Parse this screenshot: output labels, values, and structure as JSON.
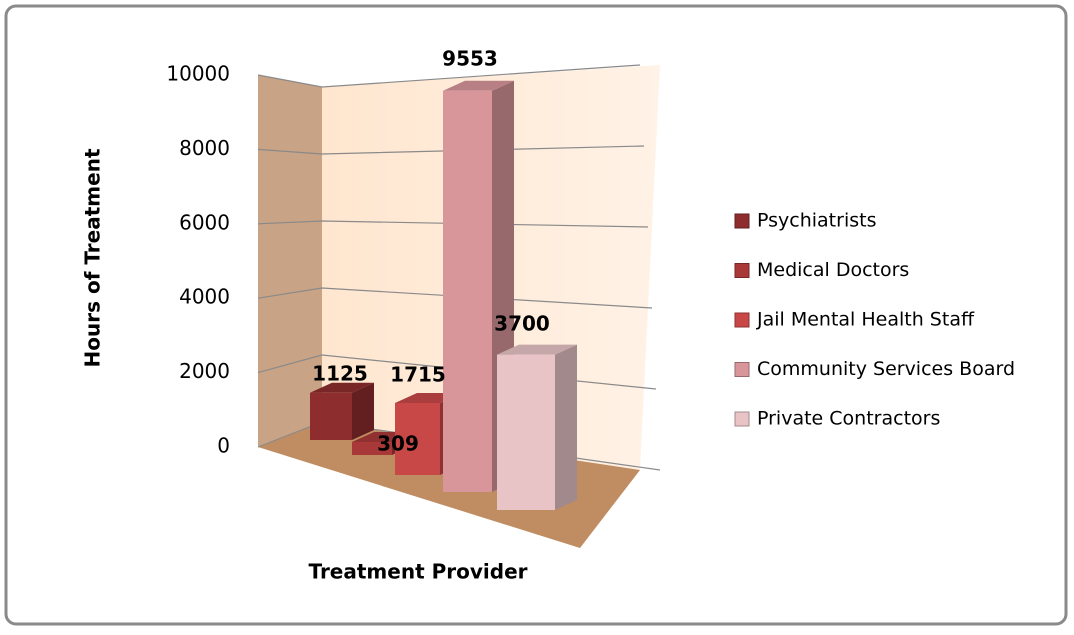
{
  "chart_data": {
    "type": "bar",
    "y_label": "Hours of Treatment",
    "x_label": "Treatment Provider",
    "categories": [
      null
    ],
    "series": [
      {
        "name": "Psychiatrists",
        "color": "#8e2d2d",
        "values": [
          1125
        ]
      },
      {
        "name": "Medical Doctors",
        "color": "#a93838",
        "values": [
          309
        ]
      },
      {
        "name": "Jail Mental Health Staff",
        "color": "#c84848",
        "values": [
          1715
        ]
      },
      {
        "name": "Community Services Board",
        "color": "#d8969b",
        "values": [
          9553
        ]
      },
      {
        "name": "Private Contractors",
        "color": "#e8c4c7",
        "values": [
          3700
        ]
      }
    ],
    "ylim": [
      0,
      10000
    ],
    "yticks": [
      0,
      2000,
      4000,
      6000,
      8000,
      10000
    ],
    "grid": true,
    "legend": "right"
  }
}
